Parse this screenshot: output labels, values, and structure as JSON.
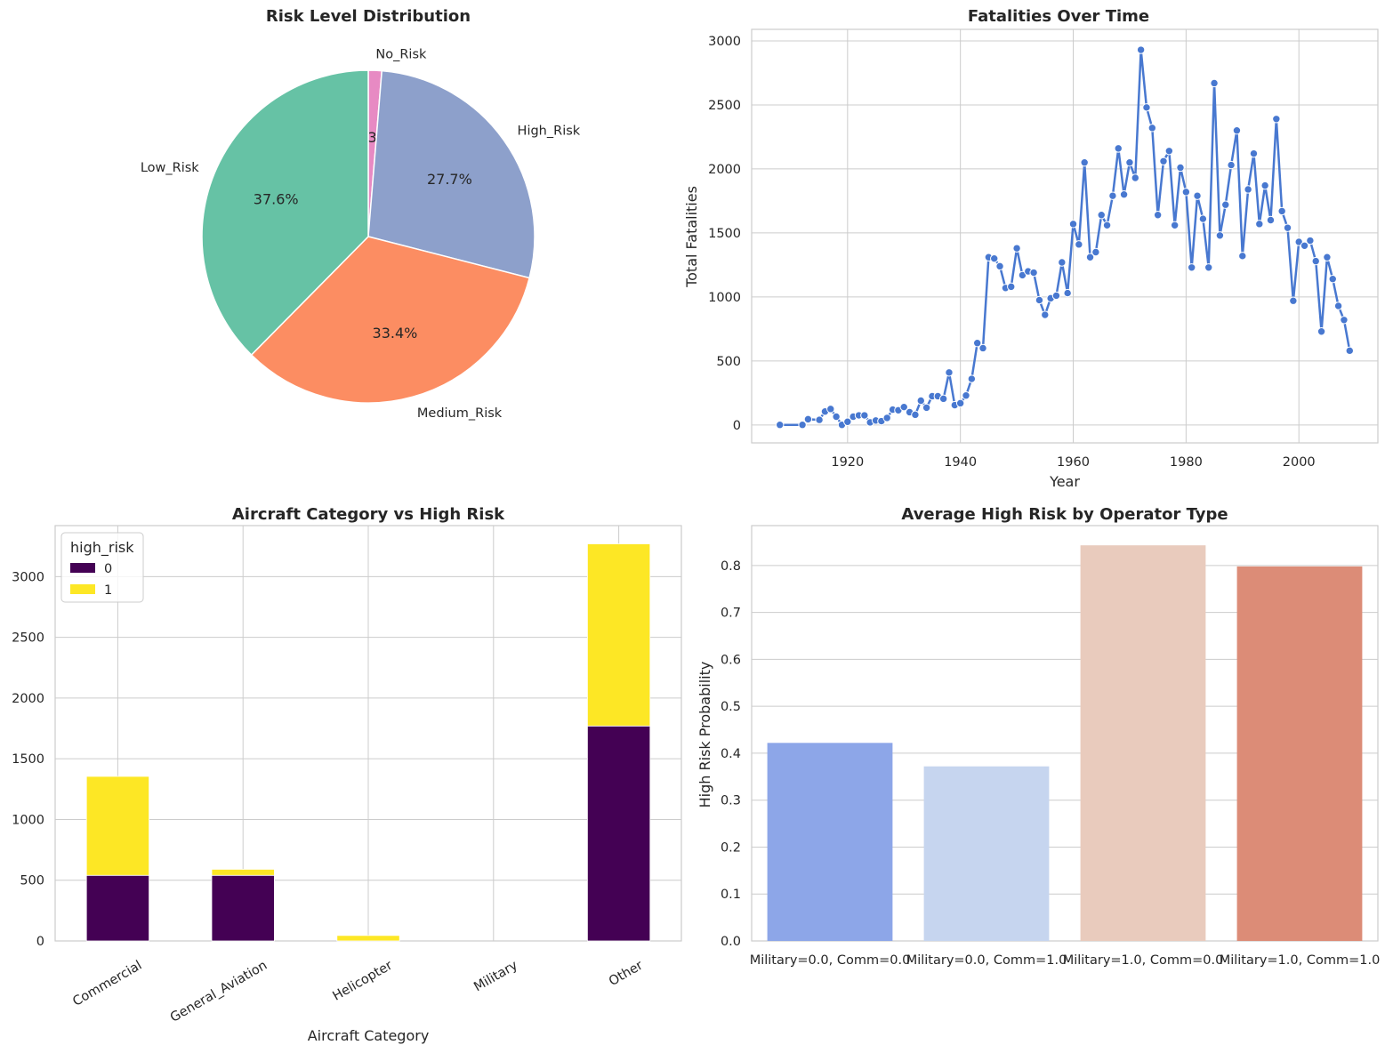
{
  "figure": {
    "background": "#ffffff",
    "grid_color": "#cccccc",
    "spine_color": "#cccccc",
    "text_color": "#262626"
  },
  "chart_data": [
    {
      "type": "pie",
      "title": "Risk Level Distribution",
      "slices": [
        {
          "label": "No_Risk",
          "value": 1.3,
          "pct_text": "1.3%",
          "color": "#e78ac3"
        },
        {
          "label": "High_Risk",
          "value": 27.7,
          "pct_text": "27.7%",
          "color": "#8da0cb"
        },
        {
          "label": "Medium_Risk",
          "value": 33.4,
          "pct_text": "33.4%",
          "color": "#fc8d62"
        },
        {
          "label": "Low_Risk",
          "value": 37.6,
          "pct_text": "37.6%",
          "color": "#66c2a5"
        }
      ],
      "start_angle_deg": 90,
      "direction": "clockwise"
    },
    {
      "type": "line",
      "title": "Fatalities Over Time",
      "xlabel": "Year",
      "ylabel": "Total Fatalities",
      "xlim": [
        1903,
        2014
      ],
      "ylim": [
        -140,
        3090
      ],
      "xticks": [
        1920,
        1940,
        1960,
        1980,
        2000
      ],
      "yticks": [
        0,
        500,
        1000,
        1500,
        2000,
        2500,
        3000
      ],
      "grid": true,
      "color": "#4878d0",
      "series": [
        {
          "x": [
            1908,
            1912,
            1913,
            1915,
            1916,
            1917,
            1918,
            1919,
            1920,
            1921,
            1922,
            1923,
            1924,
            1925,
            1926,
            1927,
            1928,
            1929,
            1930,
            1931,
            1932,
            1933,
            1934,
            1935,
            1936,
            1937,
            1938,
            1939,
            1940,
            1941,
            1942,
            1943,
            1944,
            1945,
            1946,
            1947,
            1948,
            1949,
            1950,
            1951,
            1952,
            1953,
            1954,
            1955,
            1956,
            1957,
            1958,
            1959,
            1960,
            1961,
            1962,
            1963,
            1964,
            1965,
            1966,
            1967,
            1968,
            1969,
            1970,
            1971,
            1972,
            1973,
            1974,
            1975,
            1976,
            1977,
            1978,
            1979,
            1980,
            1981,
            1982,
            1983,
            1984,
            1985,
            1986,
            1987,
            1988,
            1989,
            1990,
            1991,
            1992,
            1993,
            1994,
            1995,
            1996,
            1997,
            1998,
            1999,
            2000,
            2001,
            2002,
            2003,
            2004,
            2005,
            2006,
            2007,
            2008,
            2009
          ],
          "y": [
            1,
            1,
            45,
            40,
            105,
            125,
            65,
            1,
            25,
            65,
            75,
            75,
            20,
            35,
            30,
            55,
            120,
            115,
            140,
            100,
            80,
            190,
            135,
            225,
            225,
            205,
            410,
            155,
            170,
            230,
            360,
            640,
            600,
            1310,
            1300,
            1240,
            1070,
            1080,
            1380,
            1170,
            1200,
            1190,
            975,
            860,
            990,
            1010,
            1270,
            1030,
            1570,
            1410,
            2050,
            1310,
            1350,
            1640,
            1560,
            1790,
            2160,
            1800,
            2050,
            1930,
            2930,
            2480,
            2320,
            1640,
            2060,
            2140,
            1560,
            2010,
            1820,
            1230,
            1790,
            1610,
            1230,
            2670,
            1480,
            1720,
            2030,
            2300,
            1320,
            1840,
            2120,
            1570,
            1870,
            1600,
            2390,
            1670,
            1540,
            970,
            1430,
            1400,
            1440,
            1280,
            730,
            1310,
            1140,
            930,
            820,
            580
          ]
        }
      ]
    },
    {
      "type": "bar",
      "stacked": true,
      "title": "Aircraft Category vs High Risk",
      "xlabel": "Aircraft Category",
      "ylabel": "",
      "categories": [
        "Commercial",
        "General_Aviation",
        "Helicopter",
        "Military",
        "Other"
      ],
      "ylim": [
        0,
        3420
      ],
      "yticks": [
        0,
        500,
        1000,
        1500,
        2000,
        2500,
        3000
      ],
      "grid": true,
      "legend": {
        "title": "high_risk",
        "placement": "top-left"
      },
      "series": [
        {
          "name": "0",
          "values": [
            540,
            540,
            0,
            0,
            1770
          ],
          "color": "#440154"
        },
        {
          "name": "1",
          "values": [
            815,
            50,
            45,
            0,
            1500
          ],
          "color": "#fde725"
        }
      ]
    },
    {
      "type": "bar",
      "title": "Average High Risk by Operator Type",
      "xlabel": "",
      "ylabel": "High Risk Probability",
      "categories": [
        "Military=0.0, Comm=0.0",
        "Military=0.0, Comm=1.0",
        "Military=1.0, Comm=0.0",
        "Military=1.0, Comm=1.0"
      ],
      "values": [
        0.422,
        0.372,
        0.843,
        0.798
      ],
      "colors": [
        "#8da6e8",
        "#c6d5ef",
        "#e9cbbd",
        "#dc8c77"
      ],
      "ylim": [
        0,
        0.885
      ],
      "yticks": [
        0.0,
        0.1,
        0.2,
        0.3,
        0.4,
        0.5,
        0.6,
        0.7,
        0.8
      ],
      "grid": true
    }
  ]
}
